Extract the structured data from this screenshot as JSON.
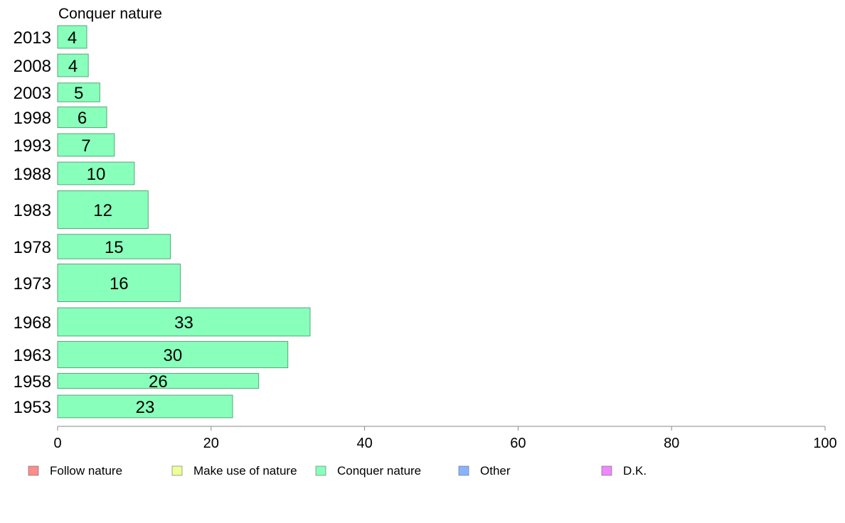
{
  "chart_data": {
    "type": "bar",
    "orientation": "horizontal",
    "title": "Conquer nature",
    "categories": [
      "2013",
      "2008",
      "2003",
      "1998",
      "1993",
      "1988",
      "1983",
      "1978",
      "1973",
      "1968",
      "1963",
      "1958",
      "1953"
    ],
    "series": [
      {
        "name": "Conquer nature",
        "color": "#88ffbb",
        "values": [
          4,
          4,
          5,
          6,
          7,
          10,
          12,
          15,
          16,
          33,
          30,
          26,
          23
        ],
        "plotted_values": [
          3.8,
          4.0,
          5.5,
          6.4,
          7.4,
          10.0,
          11.8,
          14.7,
          16.0,
          32.9,
          30.0,
          26.2,
          22.8
        ],
        "bar_thickness": [
          0.6,
          0.6,
          0.5,
          0.55,
          0.6,
          0.6,
          1.0,
          0.65,
          1.0,
          0.75,
          0.7,
          0.4,
          0.6
        ]
      }
    ],
    "xlim": [
      0,
      100
    ],
    "xticks": [
      0,
      20,
      40,
      60,
      80,
      100
    ],
    "grid": false,
    "legend": {
      "position": "bottom",
      "entries": [
        {
          "label": "Follow nature",
          "color": "#ff8c8c"
        },
        {
          "label": "Make use of nature",
          "color": "#eeff99"
        },
        {
          "label": "Conquer nature",
          "color": "#88ffbb"
        },
        {
          "label": "Other",
          "color": "#88b4ff"
        },
        {
          "label": "D.K.",
          "color": "#ee88ff"
        }
      ]
    }
  }
}
